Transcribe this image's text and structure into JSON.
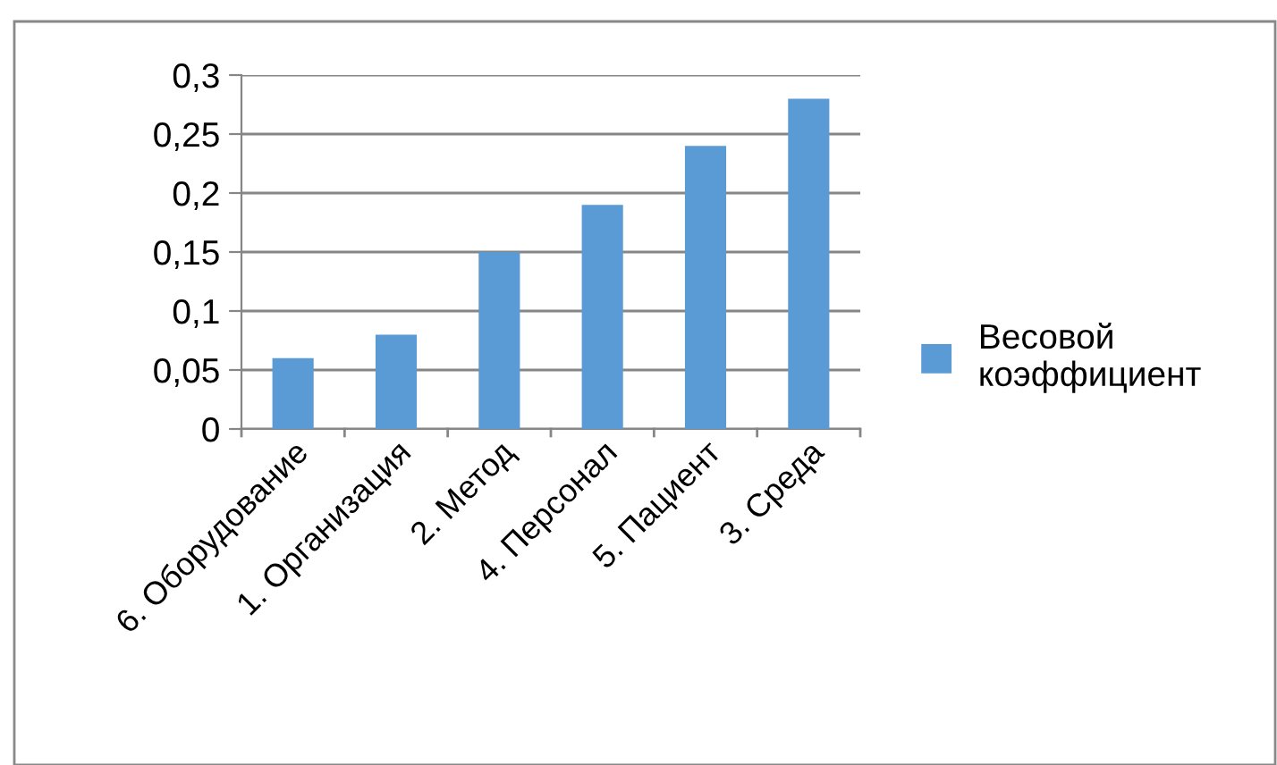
{
  "chart_data": {
    "type": "bar",
    "categories": [
      "6. Оборудование",
      "1. Организация",
      "2. Метод",
      "4. Персонал",
      "5. Пациент",
      "3. Среда"
    ],
    "series": [
      {
        "name": "Весовой коэффициент",
        "color": "#5b9bd5",
        "values": [
          0.06,
          0.08,
          0.15,
          0.19,
          0.24,
          0.28
        ]
      }
    ],
    "ylim": [
      0,
      0.3
    ],
    "yticks": [
      {
        "value": 0,
        "label": "0"
      },
      {
        "value": 0.05,
        "label": "0,05"
      },
      {
        "value": 0.1,
        "label": "0,1"
      },
      {
        "value": 0.15,
        "label": "0,15"
      },
      {
        "value": 0.2,
        "label": "0,2"
      },
      {
        "value": 0.25,
        "label": "0,25"
      },
      {
        "value": 0.3,
        "label": "0,3"
      }
    ],
    "grid": "y",
    "legend": "right"
  }
}
